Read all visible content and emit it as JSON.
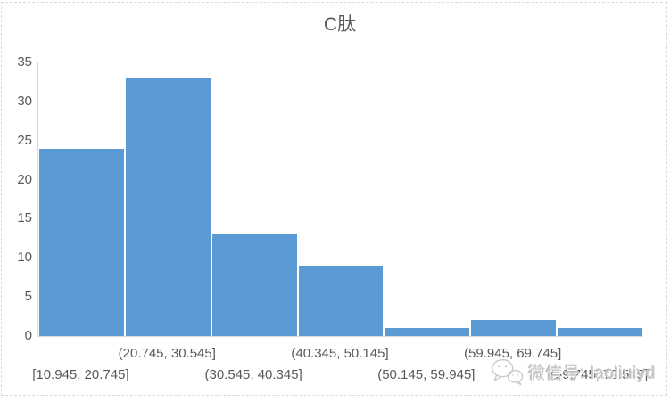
{
  "chart_data": {
    "type": "bar",
    "chart_kind": "histogram",
    "title": "C肽",
    "categories": [
      "[10.945, 20.745]",
      "(20.745, 30.545]",
      "(30.545, 40.345]",
      "(40.345, 50.145]",
      "(50.145, 59.945]",
      "(59.945, 69.745]",
      "(69.745, 79.545]"
    ],
    "values": [
      24,
      33,
      13,
      9,
      1,
      2,
      1
    ],
    "xlabel": "",
    "ylabel": "",
    "ylim": [
      0,
      35
    ],
    "yticks": [
      0,
      5,
      10,
      15,
      20,
      25,
      30,
      35
    ],
    "grid": "off",
    "legend": "none",
    "x_label_layout": "staggered-two-rows",
    "bar_color": "#5B9BD5",
    "axis_text_color": "#595959",
    "axis_line_color": "#D9D9D9"
  },
  "watermark": {
    "icon": "wechat-icon",
    "text": "微信号: laoliuiyd"
  }
}
